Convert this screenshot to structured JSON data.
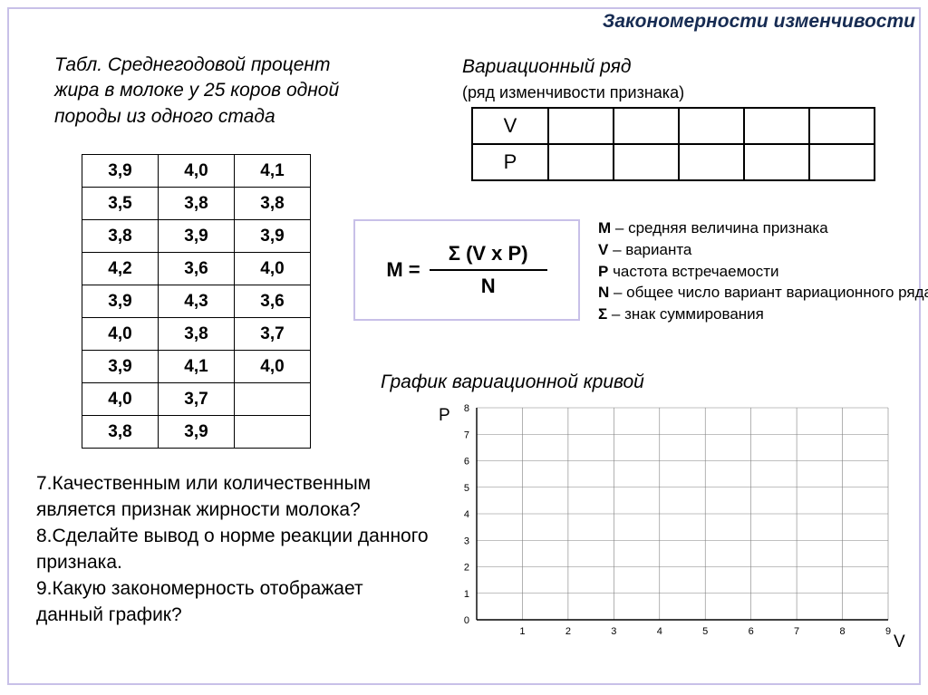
{
  "header": "Закономерности изменчивости",
  "caption": "Табл. Среднегодовой процент жира в молоке у 25 коров одной породы из одного стада",
  "dataTable": {
    "rows": [
      [
        "3,9",
        "4,0",
        "4,1"
      ],
      [
        "3,5",
        "3,8",
        "3,8"
      ],
      [
        "3,8",
        "3,9",
        "3,9"
      ],
      [
        "4,2",
        "3,6",
        "4,0"
      ],
      [
        "3,9",
        "4,3",
        "3,6"
      ],
      [
        "4,0",
        "3,8",
        "3,7"
      ],
      [
        "3,9",
        "4,1",
        "4,0"
      ],
      [
        "4,0",
        "3,7",
        ""
      ],
      [
        "3,8",
        "3,9",
        ""
      ]
    ],
    "cell_border": "#000000",
    "fontsize": 19
  },
  "variation": {
    "title": "Вариационный ряд",
    "subtitle": "(ряд изменчивости признака)",
    "row_labels": [
      "V",
      "P"
    ],
    "blank_cols": 5
  },
  "formula": {
    "lhs": "М =",
    "numerator": "Σ (V x P)",
    "denominator": "N",
    "border_color": "#c8c0e8"
  },
  "legend": {
    "items": [
      {
        "sym": "M",
        "text": " – средняя величина признака"
      },
      {
        "sym": "V",
        "text": " – варианта"
      },
      {
        "sym": "P",
        "text": " частота встречаемости"
      },
      {
        "sym": "N",
        "text": " – общее число вариант вариационного ряда"
      },
      {
        "sym": "Σ",
        "text": " – знак суммирования"
      }
    ]
  },
  "graphTitle": "График вариационной кривой",
  "graph": {
    "type": "line",
    "y_axis_label": "P",
    "x_axis_label": "V",
    "xlim": [
      0,
      9
    ],
    "ylim": [
      0,
      8
    ],
    "xticks": [
      1,
      2,
      3,
      4,
      5,
      6,
      7,
      8,
      9
    ],
    "yticks": [
      0,
      1,
      2,
      3,
      4,
      5,
      6,
      7,
      8
    ],
    "grid_color": "#808080",
    "axis_color": "#000000",
    "background": "#ffffff",
    "tick_fontsize": 11,
    "series": []
  },
  "questions": [
    "7.Качественным или количественным является признак жирности молока?",
    "8.Сделайте вывод о норме реакции данного признака.",
    "9.Какую закономерность отображает данный график?"
  ],
  "colors": {
    "frame": "#c8c0e8",
    "header_text": "#162b52",
    "text": "#000000",
    "bg": "#ffffff"
  }
}
